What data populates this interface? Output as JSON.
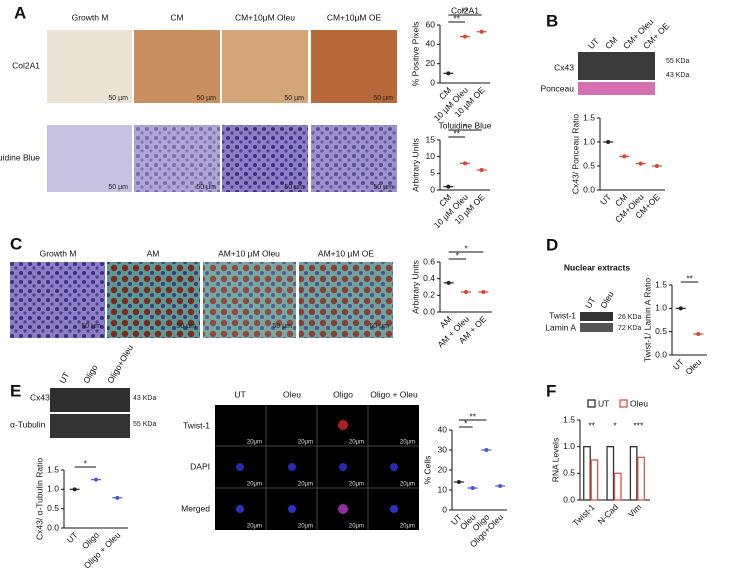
{
  "panels": {
    "a": {
      "label": "A",
      "columns": [
        "Growth M",
        "CM",
        "CM+10μM Oleu",
        "CM+10μM OE"
      ],
      "rows": [
        "Col2A1",
        "Toluidine Blue"
      ],
      "scale_bar": "50 µm"
    },
    "b": {
      "label": "B",
      "columns": [
        "UT",
        "CM",
        "CM+ Oleu",
        "CM+ OE"
      ],
      "rows": [
        "Cx43",
        "Ponceau"
      ],
      "markers": [
        "55 KDa",
        "43 KDa"
      ]
    },
    "c": {
      "label": "C",
      "columns": [
        "Growth M",
        "AM",
        "AM+10 µM Oleu",
        "AM+10 µM OE"
      ],
      "scale_bar": "50 µm"
    },
    "d": {
      "label": "D",
      "title": "Nuclear extracts",
      "columns": [
        "UT",
        "Oleu"
      ],
      "rows": [
        "Twist-1",
        "Lamin A"
      ],
      "markers": [
        "26 KDa",
        "72 KDa"
      ]
    },
    "e": {
      "label": "E",
      "columns": [
        "UT",
        "Oligo",
        "Oligo+Oleu"
      ],
      "rows": [
        "Cx43",
        "α-Tubulin"
      ],
      "markers": [
        "43 KDa",
        "55 KDa"
      ],
      "image_columns": [
        "UT",
        "Oleu",
        "Oligo",
        "Oligo + Oleu"
      ],
      "image_rows": [
        "Twist-1",
        "DAPI",
        "Merged"
      ],
      "scale_bar": "20μm"
    },
    "f": {
      "label": "F"
    }
  },
  "chart_data": [
    {
      "type": "dot",
      "title": "Col2A1",
      "ylabel": "% Positive Pixels",
      "categories": [
        "CM",
        "10 µM Oleu",
        "10 µM OE"
      ],
      "values": [
        10,
        48,
        53
      ],
      "color": "#d9432f",
      "ylim": [
        0,
        60
      ],
      "yticks": [
        0,
        20,
        40,
        60
      ],
      "annotations": [
        "**",
        "**"
      ]
    },
    {
      "type": "dot",
      "title": "Toluidine Blue",
      "ylabel": "Arbitrary Units",
      "categories": [
        "CM",
        "10 µM Oleu",
        "10 µM OE"
      ],
      "values": [
        1,
        8,
        6
      ],
      "color": "#d9432f",
      "ylim": [
        0,
        15
      ],
      "yticks": [
        0,
        5,
        10,
        15
      ],
      "annotations": [
        "**",
        "*"
      ]
    },
    {
      "type": "dot",
      "ylabel": "Cx43/ Ponceau Ratio",
      "categories": [
        "UT",
        "CM",
        "CM+Oleu",
        "CM+OE"
      ],
      "values": [
        1.0,
        0.7,
        0.55,
        0.5
      ],
      "color": "#d9432f",
      "ylim": [
        0,
        1.5
      ],
      "yticks": [
        {
          "value": 0,
          "label": "0.0"
        },
        {
          "value": 0.5,
          "label": "0.5"
        },
        {
          "value": 1,
          "label": "1.0"
        },
        {
          "value": 1.5,
          "label": "1.5"
        }
      ]
    },
    {
      "type": "dot",
      "ylabel": "Arbitrary Units",
      "categories": [
        "AM",
        "AM + Oleu",
        "AM + OE"
      ],
      "values": [
        0.35,
        0.24,
        0.24
      ],
      "color": "#d9432f",
      "ylim": [
        0,
        0.6
      ],
      "yticks": [
        {
          "value": 0,
          "label": "0.0"
        },
        0.2,
        0.4,
        0.6
      ],
      "annotations": [
        "*",
        "*"
      ]
    },
    {
      "type": "dot",
      "ylabel": "Twist-1/ Lamin A Ratio",
      "categories": [
        "UT",
        "Oleu"
      ],
      "values": [
        1.0,
        0.45
      ],
      "color": "#d9432f",
      "ylim": [
        0,
        1.5
      ],
      "yticks": [
        {
          "value": 0,
          "label": "0.0"
        },
        {
          "value": 0.5,
          "label": "0.5"
        },
        {
          "value": 1,
          "label": "1.0"
        },
        {
          "value": 1.5,
          "label": "1.5"
        }
      ],
      "annotations": [
        "**"
      ]
    },
    {
      "type": "dot",
      "ylabel": "Cx43/ α-Tubulin Ratio",
      "categories": [
        "UT",
        "Oligo",
        "Oligo + Oleu"
      ],
      "values": [
        1.0,
        1.25,
        0.78
      ],
      "color": "#4a5ad0",
      "ylim": [
        0,
        1.5
      ],
      "yticks": [
        {
          "value": 0,
          "label": "0.0"
        },
        {
          "value": 0.5,
          "label": "0.5"
        },
        {
          "value": 1,
          "label": "1.0"
        },
        {
          "value": 1.5,
          "label": "1.5"
        }
      ],
      "annotations": [
        "*"
      ]
    },
    {
      "type": "dot",
      "ylabel": "% Cells",
      "categories": [
        "UT",
        "Oleu",
        "Oligo",
        "Oligo+Oleu"
      ],
      "values": [
        14,
        11,
        30,
        12
      ],
      "color": "#4a5ad0",
      "ylim": [
        0,
        40
      ],
      "yticks": [
        0,
        10,
        20,
        30,
        40
      ],
      "annotations": [
        "*",
        "**"
      ]
    },
    {
      "type": "bar",
      "ylabel": "RNA Levels",
      "categories": [
        "Twist-1",
        "N-Cad",
        "Vim"
      ],
      "series": [
        {
          "name": "UT",
          "color": "#333333",
          "values": [
            1,
            1,
            1
          ]
        },
        {
          "name": "Oleu",
          "color": "#e0524a",
          "values": [
            0.75,
            0.5,
            0.8
          ]
        }
      ],
      "ylim": [
        0,
        1.5
      ],
      "yticks": [
        {
          "value": 0,
          "label": "0.0"
        },
        {
          "value": 0.5,
          "label": "0.5"
        },
        {
          "value": 1,
          "label": "1.0"
        },
        {
          "value": 1.5,
          "label": "1.5"
        }
      ],
      "annotations": [
        "**",
        "*",
        "***"
      ]
    }
  ]
}
